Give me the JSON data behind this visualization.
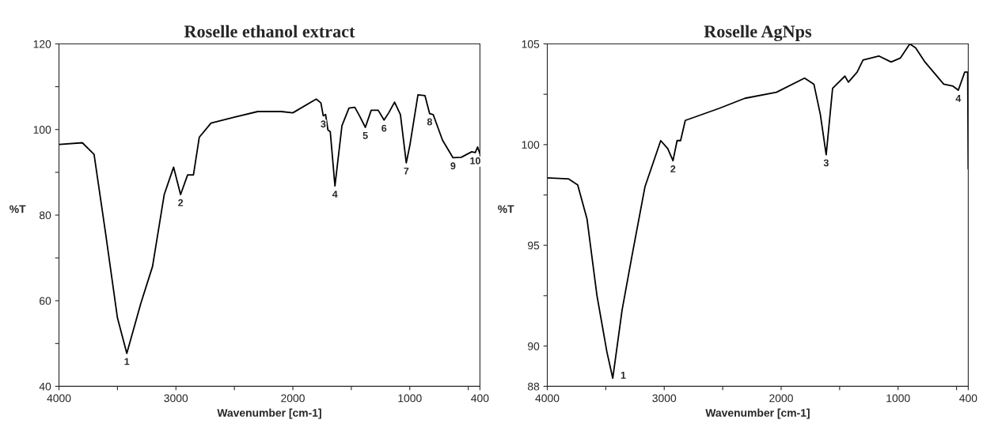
{
  "chart_data": [
    {
      "type": "line",
      "title": "Roselle ethanol extract",
      "xlabel": "Wavenumber [cm-1]",
      "ylabel": "%T",
      "xlim": [
        4000,
        400
      ],
      "ylim": [
        40,
        120
      ],
      "xticks": [
        4000,
        {
          "value": 3500,
          "label": null
        },
        3000,
        {
          "value": 2500,
          "label": null
        },
        2000,
        {
          "value": 1500,
          "label": null
        },
        1000,
        {
          "value": 500,
          "label": null
        },
        400
      ],
      "yticks": [
        40,
        {
          "value": 50,
          "label": null
        },
        60,
        {
          "value": 70,
          "label": null
        },
        80,
        {
          "value": 90,
          "label": null
        },
        100,
        {
          "value": 110,
          "label": null
        },
        120
      ],
      "grid": false,
      "series": [
        {
          "color": "#000000",
          "x": [
            4000,
            3800,
            3700,
            3600,
            3500,
            3420,
            3300,
            3200,
            3100,
            3020,
            2960,
            2900,
            2850,
            2800,
            2700,
            2500,
            2300,
            2100,
            2000,
            1800,
            1760,
            1740,
            1720,
            1700,
            1680,
            1640,
            1580,
            1520,
            1470,
            1430,
            1380,
            1330,
            1270,
            1220,
            1180,
            1130,
            1080,
            1030,
            1000,
            930,
            870,
            830,
            800,
            720,
            630,
            560,
            470,
            440,
            420,
            400
          ],
          "values": [
            96.5,
            96.9,
            94.2,
            75.5,
            56,
            47.7,
            59.4,
            68,
            84.8,
            91.2,
            84.8,
            89.4,
            89.4,
            98.2,
            101.5,
            102.9,
            104.2,
            104.2,
            103.9,
            107.1,
            106.2,
            103.2,
            103.5,
            99.9,
            99.5,
            86.8,
            100.9,
            105,
            105.2,
            103.2,
            100.5,
            104.5,
            104.5,
            102.2,
            103.9,
            106.4,
            103.5,
            92.2,
            96.2,
            108.1,
            107.9,
            103.7,
            103.5,
            97.5,
            93.4,
            93.5,
            94.8,
            94.6,
            95.9,
            94.3
          ]
        }
      ],
      "annotations": [
        {
          "text": "1",
          "x": 3420,
          "y": 47.7
        },
        {
          "text": "2",
          "x": 2960,
          "y": 84.8
        },
        {
          "text": "3",
          "x": 1740,
          "y": 103.2
        },
        {
          "text": "4",
          "x": 1640,
          "y": 86.8
        },
        {
          "text": "5",
          "x": 1380,
          "y": 100.5
        },
        {
          "text": "6",
          "x": 1220,
          "y": 102.2
        },
        {
          "text": "7",
          "x": 1030,
          "y": 92.2
        },
        {
          "text": "8",
          "x": 830,
          "y": 103.7
        },
        {
          "text": "9",
          "x": 630,
          "y": 93.4
        },
        {
          "text": "10",
          "x": 440,
          "y": 94.6
        }
      ]
    },
    {
      "type": "line",
      "title": "Roselle AgNps",
      "xlabel": "Wavenumber [cm-1]",
      "ylabel": "%T",
      "xlim": [
        4000,
        400
      ],
      "ylim": [
        88,
        105
      ],
      "xticks": [
        4000,
        {
          "value": 3500,
          "label": null
        },
        3000,
        {
          "value": 2500,
          "label": null
        },
        2000,
        {
          "value": 1500,
          "label": null
        },
        1000,
        {
          "value": 500,
          "label": null
        },
        400
      ],
      "yticks": [
        88,
        90,
        {
          "value": 92.5,
          "label": null
        },
        95,
        {
          "value": 97.5,
          "label": null
        },
        100,
        {
          "value": 102.5,
          "label": null
        },
        105
      ],
      "grid": false,
      "series": [
        {
          "color": "#000000",
          "x": [
            4000,
            3820,
            3740,
            3660,
            3575,
            3490,
            3440,
            3360,
            3275,
            3165,
            3030,
            2970,
            2925,
            2890,
            2860,
            2820,
            2530,
            2310,
            2040,
            1800,
            1720,
            1665,
            1615,
            1560,
            1455,
            1425,
            1350,
            1300,
            1165,
            1060,
            980,
            900,
            850,
            770,
            610,
            530,
            485,
            430,
            405,
            400
          ],
          "values": [
            98.35,
            98.3,
            98.0,
            96.3,
            92.5,
            89.7,
            88.4,
            91.8,
            94.5,
            97.9,
            100.2,
            99.8,
            99.2,
            100.2,
            100.2,
            101.2,
            101.8,
            102.3,
            102.6,
            103.3,
            103.0,
            101.5,
            99.5,
            102.8,
            103.4,
            103.1,
            103.6,
            104.2,
            104.4,
            104.1,
            104.3,
            105.0,
            104.8,
            104.1,
            103.0,
            102.9,
            102.7,
            103.6,
            103.6,
            98.8
          ]
        }
      ],
      "annotations": [
        {
          "text": "1",
          "x": 3440,
          "y": 88.4
        },
        {
          "text": "2",
          "x": 2925,
          "y": 99.2
        },
        {
          "text": "3",
          "x": 1615,
          "y": 99.5
        },
        {
          "text": "4",
          "x": 485,
          "y": 102.7
        }
      ]
    }
  ]
}
